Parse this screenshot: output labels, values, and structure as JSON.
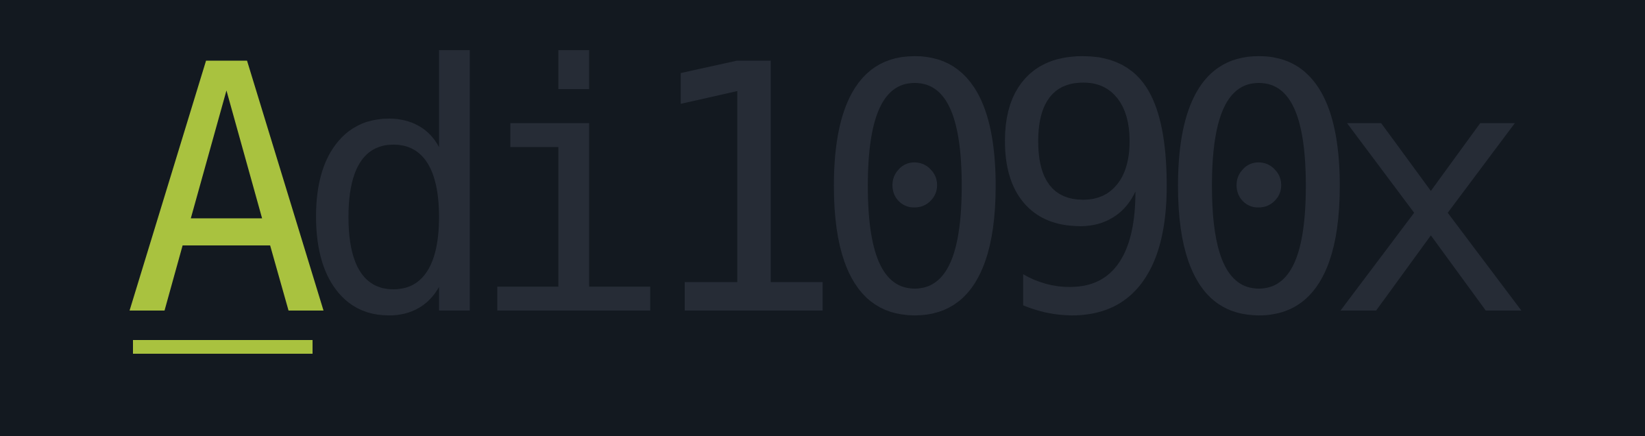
{
  "logo": {
    "accent_letter": "A",
    "rest": "di1090x",
    "colors": {
      "background": "#131920",
      "accent": "#a9c23f",
      "muted": "#262c36"
    }
  }
}
